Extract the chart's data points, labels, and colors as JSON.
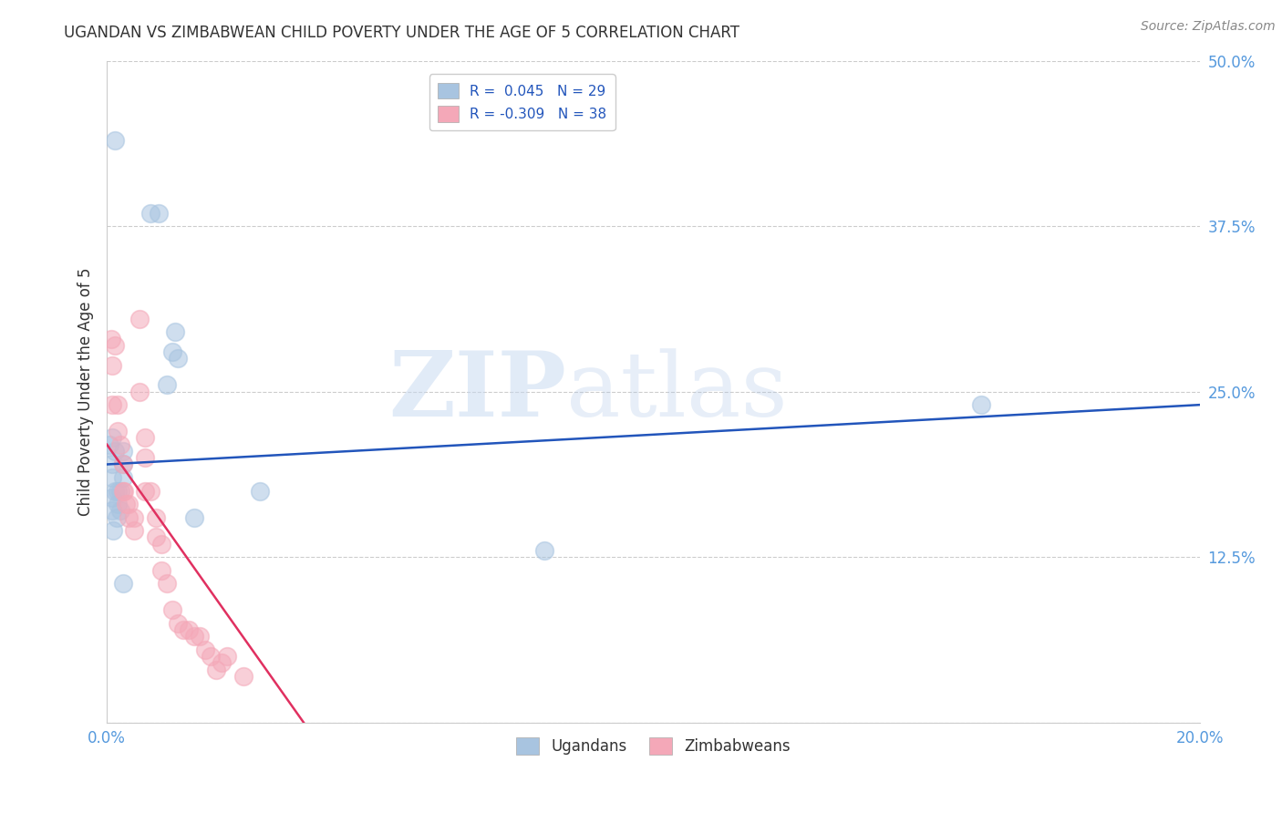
{
  "title": "UGANDAN VS ZIMBABWEAN CHILD POVERTY UNDER THE AGE OF 5 CORRELATION CHART",
  "source": "Source: ZipAtlas.com",
  "ylabel": "Child Poverty Under the Age of 5",
  "xlim": [
    0.0,
    0.2
  ],
  "ylim": [
    0.0,
    0.5
  ],
  "xticks": [
    0.0,
    0.05,
    0.1,
    0.15,
    0.2
  ],
  "xticklabels": [
    "0.0%",
    "",
    "",
    "",
    "20.0%"
  ],
  "yticks": [
    0.0,
    0.125,
    0.25,
    0.375,
    0.5
  ],
  "yticklabels": [
    "",
    "12.5%",
    "25.0%",
    "37.5%",
    "50.0%"
  ],
  "ugandan_R": 0.045,
  "ugandan_N": 29,
  "zimbabwean_R": -0.309,
  "zimbabwean_N": 38,
  "ugandan_color": "#a8c4e0",
  "zimbabwean_color": "#f4a8b8",
  "ugandan_line_color": "#2255bb",
  "zimbabwean_line_color": "#e03060",
  "watermark_zip": "ZIP",
  "watermark_atlas": "atlas",
  "background_color": "#ffffff",
  "grid_color": "#cccccc",
  "title_color": "#333333",
  "tick_color": "#5599dd",
  "legend_facecolor": "#ffffff",
  "legend_edgecolor": "#cccccc",
  "dot_size": 200,
  "dot_alpha": 0.55,
  "ugandan_x": [
    0.0015,
    0.003,
    0.0005,
    0.001,
    0.001,
    0.0015,
    0.001,
    0.0015,
    0.001,
    0.002,
    0.001,
    0.0018,
    0.0012,
    0.002,
    0.003,
    0.003,
    0.003,
    0.0025,
    0.0025,
    0.008,
    0.0095,
    0.011,
    0.012,
    0.0125,
    0.013,
    0.028,
    0.016,
    0.08,
    0.16
  ],
  "ugandan_y": [
    0.44,
    0.105,
    0.21,
    0.215,
    0.195,
    0.205,
    0.185,
    0.175,
    0.17,
    0.165,
    0.16,
    0.155,
    0.145,
    0.175,
    0.195,
    0.205,
    0.185,
    0.16,
    0.175,
    0.385,
    0.385,
    0.255,
    0.28,
    0.295,
    0.275,
    0.175,
    0.155,
    0.13,
    0.24
  ],
  "zimbabwean_x": [
    0.0008,
    0.001,
    0.001,
    0.0015,
    0.002,
    0.002,
    0.0025,
    0.003,
    0.003,
    0.0032,
    0.0035,
    0.004,
    0.004,
    0.005,
    0.005,
    0.006,
    0.006,
    0.007,
    0.007,
    0.007,
    0.008,
    0.009,
    0.009,
    0.01,
    0.01,
    0.011,
    0.012,
    0.013,
    0.014,
    0.015,
    0.016,
    0.017,
    0.018,
    0.019,
    0.02,
    0.021,
    0.022,
    0.025
  ],
  "zimbabwean_y": [
    0.29,
    0.27,
    0.24,
    0.285,
    0.24,
    0.22,
    0.21,
    0.195,
    0.175,
    0.175,
    0.165,
    0.165,
    0.155,
    0.155,
    0.145,
    0.305,
    0.25,
    0.215,
    0.2,
    0.175,
    0.175,
    0.155,
    0.14,
    0.135,
    0.115,
    0.105,
    0.085,
    0.075,
    0.07,
    0.07,
    0.065,
    0.065,
    0.055,
    0.05,
    0.04,
    0.045,
    0.05,
    0.035
  ],
  "blue_line_x0": 0.0,
  "blue_line_y0": 0.195,
  "blue_line_x1": 0.2,
  "blue_line_y1": 0.24,
  "pink_line_x0": 0.0,
  "pink_line_y0": 0.21,
  "pink_line_x1": 0.036,
  "pink_line_y1": 0.0
}
